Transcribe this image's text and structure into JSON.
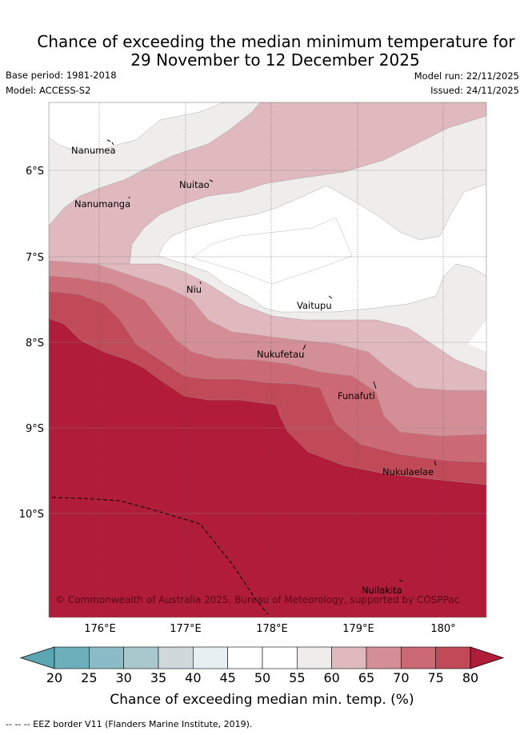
{
  "title": {
    "line1": "Chance of exceeding the median minimum temperature for",
    "line2": "29 November to 12 December 2025"
  },
  "meta": {
    "base_period": "Base period: 1981-2018",
    "model": "Model: ACCESS-S2",
    "model_run": "Model run: 22/11/2025",
    "issued": "Issued: 24/11/2025"
  },
  "map": {
    "lat_ticks": [
      "6°S",
      "7°S",
      "8°S",
      "9°S",
      "10°S"
    ],
    "lon_ticks": [
      "176°E",
      "177°E",
      "178°E",
      "179°E",
      "180°"
    ],
    "places": [
      "Nanumea",
      "Nuitao",
      "Nanumanga",
      "Niu",
      "Vaitupu",
      "Nukufetau",
      "Funafuti",
      "Nukulaelae",
      "Nuilakita"
    ],
    "copyright": "© Commonwealth of Australia 2025, Bureau of Meteorology, supported by COSPPac"
  },
  "colorbar": {
    "ticks": [
      "20",
      "25",
      "30",
      "35",
      "40",
      "45",
      "50",
      "55",
      "60",
      "65",
      "70",
      "75",
      "80"
    ],
    "colors": [
      "#6bb0bb",
      "#8bbcc6",
      "#a8c8cd",
      "#d1d8db",
      "#e8eff3",
      "#ffffff",
      "#ffffff",
      "#eeedec",
      "#e0b9bf",
      "#d48e96",
      "#cb6a74",
      "#c04a57"
    ],
    "under_color": "#5aa6b2",
    "over_color": "#b11c38",
    "label": "Chance of exceeding median min. temp. (%)"
  },
  "footer": "--  --  -- EEZ border V11 (Flanders Marine Institute, 2019)."
}
